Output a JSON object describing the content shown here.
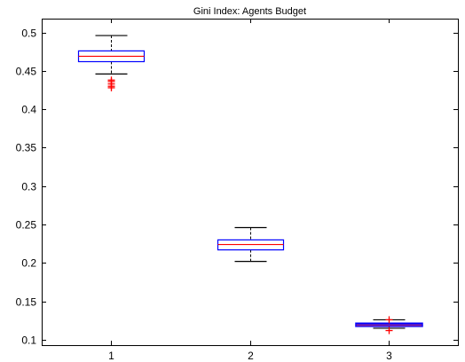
{
  "chart_data": {
    "type": "boxplot",
    "title": "Gini Index: Agents Budget",
    "xlabel": "",
    "ylabel": "",
    "categories": [
      "1",
      "2",
      "3"
    ],
    "ylim": [
      0.093,
      0.518
    ],
    "yticks": [
      0.1,
      0.15,
      0.2,
      0.25,
      0.3,
      0.35,
      0.4,
      0.45,
      0.5
    ],
    "ytick_labels": [
      "0.1",
      "0.15",
      "0.2",
      "0.25",
      "0.3",
      "0.35",
      "0.4",
      "0.45",
      "0.5"
    ],
    "grid": false,
    "boxes": [
      {
        "category": "1",
        "q1": 0.462,
        "median": 0.469,
        "q3": 0.476,
        "whisker_low": 0.446,
        "whisker_high": 0.496,
        "outliers": [
          0.438,
          0.436,
          0.433,
          0.43,
          0.428
        ]
      },
      {
        "category": "2",
        "q1": 0.217,
        "median": 0.224,
        "q3": 0.23,
        "whisker_low": 0.202,
        "whisker_high": 0.246,
        "outliers": []
      },
      {
        "category": "3",
        "q1": 0.118,
        "median": 0.119,
        "q3": 0.121,
        "whisker_low": 0.115,
        "whisker_high": 0.126,
        "outliers": [
          0.112,
          0.126
        ]
      }
    ],
    "colors": {
      "box": "#0000ff",
      "median": "#ff0000",
      "whisker": "#000000",
      "outlier": "#ff0000",
      "axes": "#000000"
    }
  }
}
